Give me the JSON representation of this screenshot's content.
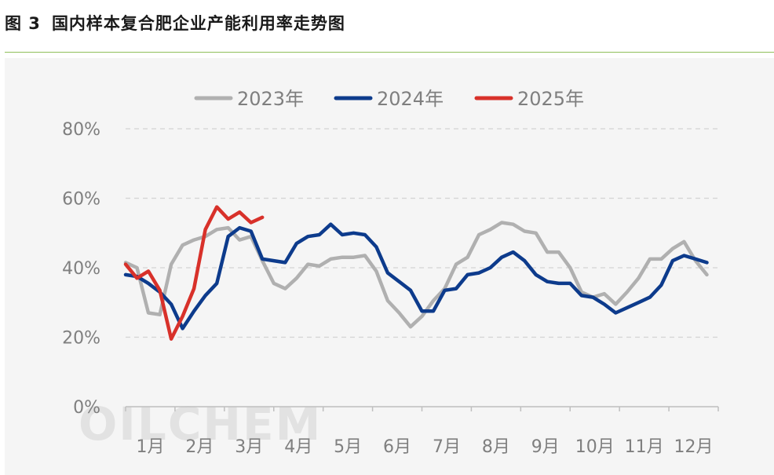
{
  "figure": {
    "number": "图 3",
    "title": "国内样本复合肥企业产能利用率走势图"
  },
  "watermark": "OILCHEM",
  "chart_data": {
    "type": "line",
    "title": "国内样本复合肥企业产能利用率走势图",
    "xlabel": "",
    "ylabel": "",
    "categories": [
      "1月",
      "2月",
      "3月",
      "4月",
      "5月",
      "6月",
      "7月",
      "8月",
      "9月",
      "10月",
      "11月",
      "12月"
    ],
    "x_range_weeks": [
      1,
      53
    ],
    "y_ticks": [
      "0%",
      "20%",
      "40%",
      "60%",
      "80%"
    ],
    "ylim": [
      0,
      80
    ],
    "grid": "horizontal-dashed",
    "legend_position": "top-center",
    "series": [
      {
        "name": "2023年",
        "color": "#b0b0b0",
        "points": [
          [
            1,
            41.5
          ],
          [
            2,
            40
          ],
          [
            3,
            27
          ],
          [
            4,
            26.5
          ],
          [
            5,
            41
          ],
          [
            6,
            46.5
          ],
          [
            7,
            48
          ],
          [
            8,
            49
          ],
          [
            9,
            51
          ],
          [
            10,
            51.5
          ],
          [
            11,
            48
          ],
          [
            12,
            49
          ],
          [
            13,
            42
          ],
          [
            14,
            35.5
          ],
          [
            15,
            34
          ],
          [
            16,
            37
          ],
          [
            17,
            41
          ],
          [
            18,
            40.5
          ],
          [
            19,
            42.5
          ],
          [
            20,
            43
          ],
          [
            21,
            43
          ],
          [
            22,
            43.5
          ],
          [
            23,
            39
          ],
          [
            24,
            30.5
          ],
          [
            25,
            27
          ],
          [
            26,
            23
          ],
          [
            27,
            26
          ],
          [
            28,
            30.5
          ],
          [
            29,
            34
          ],
          [
            30,
            41
          ],
          [
            31,
            43
          ],
          [
            32,
            49.5
          ],
          [
            33,
            51
          ],
          [
            34,
            53
          ],
          [
            35,
            52.5
          ],
          [
            36,
            50.5
          ],
          [
            37,
            50
          ],
          [
            38,
            44.5
          ],
          [
            39,
            44.5
          ],
          [
            40,
            40
          ],
          [
            41,
            33
          ],
          [
            42,
            31.5
          ],
          [
            43,
            32.5
          ],
          [
            44,
            29.5
          ],
          [
            45,
            33
          ],
          [
            46,
            37
          ],
          [
            47,
            42.5
          ],
          [
            48,
            42.5
          ],
          [
            49,
            45.5
          ],
          [
            50,
            47.5
          ],
          [
            51,
            42
          ],
          [
            52,
            38
          ]
        ]
      },
      {
        "name": "2024年",
        "color": "#0d3b8c",
        "points": [
          [
            1,
            38
          ],
          [
            2,
            37.5
          ],
          [
            3,
            35.5
          ],
          [
            4,
            33
          ],
          [
            5,
            29.5
          ],
          [
            6,
            22.5
          ],
          [
            7,
            27.5
          ],
          [
            8,
            32
          ],
          [
            9,
            35.5
          ],
          [
            10,
            49
          ],
          [
            11,
            51.5
          ],
          [
            12,
            50.5
          ],
          [
            13,
            42.5
          ],
          [
            14,
            42
          ],
          [
            15,
            41.5
          ],
          [
            16,
            47
          ],
          [
            17,
            49
          ],
          [
            18,
            49.5
          ],
          [
            19,
            52.5
          ],
          [
            20,
            49.5
          ],
          [
            21,
            50
          ],
          [
            22,
            49.5
          ],
          [
            23,
            46
          ],
          [
            24,
            38.5
          ],
          [
            25,
            36
          ],
          [
            26,
            33.5
          ],
          [
            27,
            27.5
          ],
          [
            28,
            27.5
          ],
          [
            29,
            33.5
          ],
          [
            30,
            34
          ],
          [
            31,
            38
          ],
          [
            32,
            38.5
          ],
          [
            33,
            40
          ],
          [
            34,
            43
          ],
          [
            35,
            44.5
          ],
          [
            36,
            42
          ],
          [
            37,
            38
          ],
          [
            38,
            36
          ],
          [
            39,
            35.5
          ],
          [
            40,
            35.5
          ],
          [
            41,
            32
          ],
          [
            42,
            31.5
          ],
          [
            43,
            29.5
          ],
          [
            44,
            27
          ],
          [
            45,
            28.5
          ],
          [
            46,
            30
          ],
          [
            47,
            31.5
          ],
          [
            48,
            35
          ],
          [
            49,
            42
          ],
          [
            50,
            43.5
          ],
          [
            51,
            42.5
          ],
          [
            52,
            41.5
          ]
        ]
      },
      {
        "name": "2025年",
        "color": "#d8312a",
        "points": [
          [
            1,
            41
          ],
          [
            2,
            37
          ],
          [
            3,
            39
          ],
          [
            4,
            33.5
          ],
          [
            5,
            19.5
          ],
          [
            6,
            26
          ],
          [
            7,
            34
          ],
          [
            8,
            51
          ],
          [
            9,
            57.5
          ],
          [
            10,
            54
          ],
          [
            11,
            56
          ],
          [
            12,
            53
          ],
          [
            13,
            54.5
          ]
        ]
      }
    ]
  }
}
